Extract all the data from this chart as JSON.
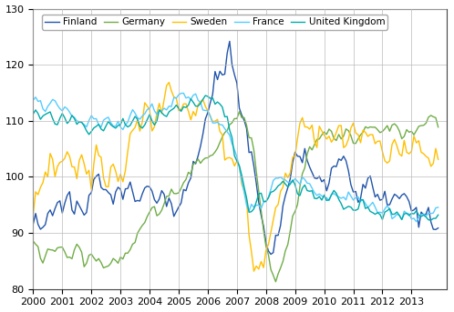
{
  "ylim": [
    80,
    130
  ],
  "yticks": [
    80,
    90,
    100,
    110,
    120,
    130
  ],
  "xtick_labels": [
    "2000",
    "2001",
    "2002",
    "2003",
    "2004",
    "2005",
    "2006",
    "2007",
    "2008",
    "2009",
    "2010",
    "2011",
    "2012",
    "2013"
  ],
  "colors": {
    "Finland": "#2255aa",
    "Germany": "#70ad47",
    "Sweden": "#ffc000",
    "France": "#55ccff",
    "United Kingdom": "#00aaaa"
  },
  "background_color": "#ffffff",
  "grid_color": "#bbbbbb",
  "Finland": [
    90.0,
    91.5,
    92.0,
    91.0,
    90.5,
    92.0,
    93.5,
    94.0,
    93.0,
    94.5,
    95.0,
    94.0,
    93.5,
    94.0,
    95.5,
    96.0,
    94.5,
    93.5,
    94.0,
    95.0,
    96.5,
    97.0,
    96.0,
    95.5,
    95.0,
    96.0,
    97.5,
    97.0,
    96.0,
    95.5,
    96.5,
    97.0,
    96.5,
    95.5,
    96.0,
    97.0,
    96.5,
    95.5,
    96.0,
    97.5,
    98.0,
    97.0,
    96.5,
    97.0,
    97.5,
    98.5,
    99.5,
    99.0,
    98.0,
    97.5,
    96.0,
    95.0,
    96.5,
    97.0,
    95.5,
    93.5,
    92.5,
    91.5,
    90.5,
    92.5,
    94.0,
    95.5,
    96.5,
    97.5,
    99.0,
    100.5,
    102.0,
    103.5,
    105.0,
    106.5,
    108.0,
    110.0,
    111.5,
    112.0,
    113.5,
    115.0,
    116.5,
    117.5,
    118.5,
    119.5,
    120.5,
    121.0,
    120.0,
    118.5,
    117.0,
    115.0,
    113.0,
    111.0,
    109.0,
    107.0,
    105.0,
    102.0,
    99.0,
    96.5,
    93.0,
    90.0,
    88.0,
    86.5,
    85.0,
    88.0,
    90.5,
    92.5,
    94.5,
    96.5,
    98.0,
    99.5,
    101.0,
    102.5,
    103.5,
    104.0,
    103.5,
    103.0,
    102.5,
    102.0,
    101.5,
    101.0,
    100.5,
    100.0,
    100.0,
    101.0,
    101.5,
    100.5,
    99.5,
    99.0,
    98.5,
    99.0,
    100.0,
    100.5,
    100.0,
    99.5,
    99.0,
    98.5,
    98.0,
    97.5,
    97.0,
    97.5,
    98.0,
    97.5,
    97.0,
    96.5,
    96.0,
    96.5,
    97.0,
    96.5,
    96.0,
    95.5,
    95.0,
    95.5,
    96.0,
    95.5,
    95.0,
    94.5,
    94.0,
    94.5,
    95.0,
    94.5,
    94.0,
    93.5,
    93.0,
    93.5,
    94.0,
    93.5,
    93.0,
    93.5,
    94.0,
    93.5,
    93.0,
    93.5
  ],
  "Germany": [
    88.0,
    87.5,
    87.0,
    86.5,
    86.0,
    86.5,
    87.0,
    87.5,
    87.0,
    86.5,
    87.0,
    87.5,
    88.0,
    87.5,
    87.0,
    86.5,
    86.0,
    86.5,
    87.0,
    86.5,
    86.0,
    85.5,
    85.0,
    85.5,
    86.0,
    85.5,
    85.0,
    84.5,
    84.0,
    84.5,
    85.0,
    85.5,
    85.0,
    84.5,
    85.0,
    85.5,
    86.0,
    86.5,
    87.0,
    87.5,
    88.0,
    88.5,
    89.0,
    89.5,
    90.0,
    90.5,
    91.0,
    91.5,
    92.0,
    92.5,
    93.0,
    93.5,
    94.0,
    94.5,
    95.0,
    95.5,
    96.0,
    96.5,
    97.0,
    97.5,
    98.0,
    98.5,
    99.0,
    99.5,
    100.0,
    100.5,
    101.0,
    101.5,
    102.0,
    102.5,
    103.0,
    103.5,
    104.0,
    104.5,
    105.0,
    105.5,
    106.0,
    106.5,
    107.0,
    107.5,
    108.0,
    108.5,
    109.0,
    109.5,
    110.0,
    110.5,
    110.0,
    109.5,
    109.0,
    108.0,
    107.0,
    105.0,
    102.0,
    99.0,
    96.0,
    93.0,
    90.0,
    87.5,
    85.0,
    83.0,
    82.0,
    82.5,
    83.5,
    85.0,
    87.0,
    89.0,
    91.0,
    93.0,
    95.0,
    97.0,
    99.0,
    100.5,
    102.0,
    103.5,
    104.5,
    105.0,
    105.5,
    106.0,
    106.5,
    107.0,
    107.5,
    107.5,
    107.5,
    107.5,
    107.5,
    107.0,
    107.0,
    107.0,
    107.5,
    107.5,
    107.5,
    107.5,
    107.0,
    107.0,
    107.0,
    107.5,
    107.5,
    107.5,
    107.5,
    108.0,
    108.0,
    108.0,
    108.5,
    108.5,
    108.5,
    108.5,
    108.0,
    108.0,
    108.5,
    108.5,
    108.0,
    107.5,
    107.5,
    107.5,
    107.5,
    107.5,
    107.5,
    107.5,
    107.5,
    108.0,
    108.0,
    108.5,
    109.0,
    109.5,
    110.0,
    110.0,
    110.0,
    110.0
  ],
  "Sweden": [
    95.0,
    96.5,
    97.5,
    98.0,
    99.0,
    100.5,
    102.0,
    103.5,
    102.5,
    101.0,
    100.5,
    101.5,
    103.0,
    104.5,
    103.5,
    102.0,
    101.0,
    100.5,
    101.5,
    103.0,
    104.0,
    103.0,
    101.5,
    100.5,
    101.0,
    102.5,
    104.0,
    103.5,
    102.0,
    101.0,
    100.5,
    101.5,
    103.0,
    104.5,
    103.5,
    102.0,
    101.0,
    102.0,
    104.0,
    105.5,
    107.0,
    108.5,
    109.0,
    108.5,
    107.5,
    108.0,
    109.5,
    110.5,
    111.0,
    110.0,
    109.5,
    110.5,
    111.5,
    112.5,
    113.0,
    113.5,
    114.5,
    115.0,
    115.5,
    115.0,
    114.5,
    115.5,
    116.0,
    116.5,
    115.5,
    114.5,
    113.5,
    114.0,
    115.0,
    115.5,
    115.0,
    114.0,
    113.0,
    112.0,
    111.0,
    110.0,
    109.0,
    108.0,
    107.0,
    106.0,
    105.5,
    105.0,
    104.5,
    104.0,
    103.5,
    103.0,
    101.0,
    98.0,
    95.0,
    91.0,
    88.0,
    85.5,
    83.5,
    82.0,
    82.5,
    83.5,
    85.0,
    87.0,
    89.0,
    91.0,
    93.0,
    94.5,
    96.0,
    97.5,
    99.0,
    100.5,
    102.0,
    103.5,
    105.0,
    106.5,
    108.0,
    108.5,
    108.0,
    107.5,
    107.0,
    107.5,
    107.0,
    106.5,
    106.0,
    106.5,
    107.0,
    107.5,
    107.0,
    106.5,
    106.5,
    107.0,
    107.5,
    107.5,
    106.5,
    106.0,
    106.5,
    107.5,
    108.0,
    107.5,
    107.0,
    107.5,
    107.0,
    106.5,
    106.0,
    106.5,
    107.5,
    107.0,
    106.5,
    106.0,
    105.5,
    105.0,
    104.5,
    104.5,
    105.0,
    104.5,
    104.5,
    103.5,
    103.0,
    103.5,
    103.5,
    103.0,
    103.0,
    103.5,
    103.5,
    104.0,
    103.5,
    103.0,
    103.5,
    103.5,
    103.0,
    103.5,
    103.0,
    103.5
  ],
  "France": [
    114.0,
    114.5,
    114.0,
    113.5,
    113.0,
    112.5,
    112.0,
    112.5,
    113.0,
    112.5,
    112.0,
    111.5,
    111.0,
    111.5,
    112.0,
    111.5,
    111.0,
    110.5,
    110.0,
    110.5,
    110.0,
    109.5,
    109.0,
    109.5,
    110.0,
    109.5,
    109.0,
    108.5,
    109.0,
    109.5,
    110.0,
    110.5,
    110.0,
    109.5,
    110.0,
    110.5,
    110.0,
    109.5,
    110.0,
    110.5,
    111.0,
    111.5,
    111.0,
    110.5,
    110.0,
    110.5,
    111.0,
    111.5,
    112.0,
    112.5,
    112.0,
    111.5,
    112.0,
    112.5,
    113.0,
    113.5,
    113.0,
    112.5,
    113.0,
    113.5,
    114.0,
    114.5,
    114.0,
    113.5,
    113.0,
    113.5,
    114.0,
    114.5,
    114.0,
    113.5,
    113.0,
    112.5,
    112.0,
    111.5,
    111.0,
    110.5,
    110.0,
    109.5,
    109.0,
    108.5,
    108.0,
    107.0,
    106.0,
    104.5,
    103.0,
    101.0,
    99.0,
    97.0,
    95.5,
    94.0,
    94.5,
    95.0,
    95.5,
    96.0,
    96.5,
    97.0,
    97.5,
    98.0,
    98.5,
    99.0,
    99.5,
    100.0,
    100.0,
    100.5,
    100.0,
    99.5,
    99.0,
    99.5,
    100.0,
    99.5,
    99.0,
    99.5,
    100.0,
    99.5,
    99.0,
    98.5,
    98.0,
    98.5,
    99.0,
    98.5,
    98.0,
    97.5,
    97.0,
    97.5,
    97.0,
    96.5,
    96.0,
    96.5,
    97.0,
    96.5,
    96.0,
    95.5,
    95.0,
    95.5,
    96.0,
    95.5,
    95.0,
    94.5,
    94.0,
    94.5,
    95.0,
    94.5,
    94.0,
    93.5,
    93.0,
    93.5,
    94.0,
    93.5,
    93.0,
    93.5,
    94.0,
    93.5,
    93.0,
    93.5,
    94.0,
    93.5,
    93.0,
    93.5,
    93.0,
    93.5,
    94.0,
    93.5,
    93.0,
    93.5,
    93.0,
    93.5,
    93.5,
    93.0
  ],
  "United Kingdom": [
    112.0,
    112.5,
    112.0,
    111.5,
    111.0,
    111.5,
    112.0,
    111.5,
    111.0,
    110.5,
    110.0,
    110.5,
    111.0,
    110.5,
    110.0,
    109.5,
    109.0,
    108.5,
    108.0,
    108.5,
    109.0,
    108.5,
    108.0,
    107.5,
    108.0,
    108.5,
    109.0,
    108.5,
    108.0,
    107.5,
    108.0,
    108.5,
    109.0,
    108.5,
    108.0,
    108.5,
    109.0,
    109.5,
    109.0,
    108.5,
    109.0,
    109.5,
    110.0,
    110.5,
    110.0,
    109.5,
    110.0,
    110.5,
    111.0,
    110.5,
    110.0,
    110.5,
    111.0,
    111.5,
    111.0,
    110.5,
    111.0,
    111.5,
    112.0,
    112.5,
    112.0,
    111.5,
    112.0,
    112.5,
    113.0,
    113.5,
    113.0,
    112.5,
    113.0,
    113.5,
    114.0,
    114.5,
    114.0,
    113.5,
    113.0,
    112.5,
    112.0,
    111.5,
    111.0,
    110.5,
    110.0,
    109.0,
    107.5,
    106.0,
    104.5,
    103.0,
    101.0,
    99.0,
    97.0,
    95.5,
    95.0,
    95.5,
    96.0,
    96.5,
    96.0,
    95.5,
    96.0,
    96.5,
    97.0,
    97.5,
    98.0,
    98.5,
    99.0,
    99.5,
    99.0,
    98.5,
    99.0,
    99.5,
    99.0,
    98.5,
    98.0,
    98.5,
    99.0,
    98.5,
    98.0,
    97.5,
    97.0,
    97.5,
    98.0,
    97.5,
    97.0,
    96.5,
    96.0,
    96.5,
    97.0,
    96.5,
    96.0,
    95.5,
    95.0,
    95.5,
    96.0,
    95.5,
    95.0,
    94.5,
    94.0,
    94.5,
    95.0,
    94.5,
    94.0,
    93.5,
    93.0,
    93.5,
    94.0,
    93.5,
    93.0,
    93.5,
    93.0,
    93.5,
    93.0,
    93.5,
    94.0,
    93.5,
    93.0,
    93.5,
    94.0,
    93.5,
    93.0,
    93.5,
    94.0,
    93.5,
    93.0,
    93.5,
    94.0,
    93.5,
    93.5,
    93.0,
    93.0,
    93.5
  ]
}
